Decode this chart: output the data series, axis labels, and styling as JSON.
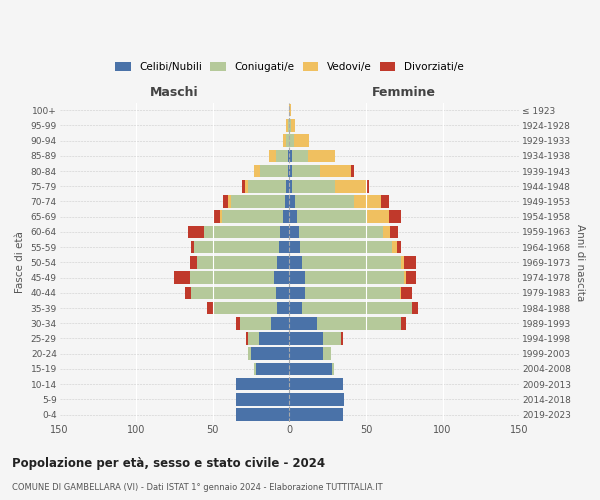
{
  "age_groups": [
    "0-4",
    "5-9",
    "10-14",
    "15-19",
    "20-24",
    "25-29",
    "30-34",
    "35-39",
    "40-44",
    "45-49",
    "50-54",
    "55-59",
    "60-64",
    "65-69",
    "70-74",
    "75-79",
    "80-84",
    "85-89",
    "90-94",
    "95-99",
    "100+"
  ],
  "birth_years": [
    "2019-2023",
    "2014-2018",
    "2009-2013",
    "2004-2008",
    "1999-2003",
    "1994-1998",
    "1989-1993",
    "1984-1988",
    "1979-1983",
    "1974-1978",
    "1969-1973",
    "1964-1968",
    "1959-1963",
    "1954-1958",
    "1949-1953",
    "1944-1948",
    "1939-1943",
    "1934-1938",
    "1929-1933",
    "1924-1928",
    "≤ 1923"
  ],
  "colors": {
    "celibi": "#4a72a8",
    "coniugati": "#b5c99a",
    "vedovi": "#f0c060",
    "divorziati": "#c0392b"
  },
  "male_celibi": [
    35,
    35,
    35,
    22,
    25,
    20,
    12,
    8,
    9,
    10,
    8,
    7,
    6,
    4,
    3,
    2,
    1,
    1,
    0,
    0,
    0
  ],
  "male_coniugati": [
    0,
    0,
    0,
    1,
    2,
    7,
    20,
    42,
    55,
    55,
    52,
    55,
    50,
    40,
    35,
    25,
    18,
    8,
    2,
    1,
    0
  ],
  "male_vedovi": [
    0,
    0,
    0,
    0,
    0,
    0,
    0,
    0,
    0,
    0,
    0,
    0,
    0,
    1,
    2,
    2,
    4,
    4,
    2,
    1,
    0
  ],
  "male_divorziati": [
    0,
    0,
    0,
    0,
    0,
    1,
    3,
    4,
    4,
    10,
    5,
    2,
    10,
    5,
    3,
    2,
    0,
    0,
    0,
    0,
    0
  ],
  "female_celibi": [
    35,
    36,
    35,
    28,
    22,
    22,
    18,
    8,
    10,
    10,
    8,
    7,
    6,
    5,
    4,
    2,
    2,
    2,
    0,
    0,
    0
  ],
  "female_coniugati": [
    0,
    0,
    0,
    1,
    5,
    12,
    55,
    72,
    62,
    65,
    65,
    60,
    55,
    45,
    38,
    28,
    18,
    10,
    3,
    1,
    0
  ],
  "female_vedovi": [
    0,
    0,
    0,
    0,
    0,
    0,
    0,
    0,
    1,
    1,
    2,
    3,
    5,
    15,
    18,
    20,
    20,
    18,
    10,
    3,
    1
  ],
  "female_divorziati": [
    0,
    0,
    0,
    0,
    0,
    1,
    3,
    4,
    7,
    7,
    8,
    3,
    5,
    8,
    5,
    2,
    2,
    0,
    0,
    0,
    0
  ],
  "xlim": 150,
  "title": "Popolazione per età, sesso e stato civile - 2024",
  "subtitle": "COMUNE DI GAMBELLARA (VI) - Dati ISTAT 1° gennaio 2024 - Elaborazione TUTTITALIA.IT",
  "ylabel_left": "Fasce di età",
  "ylabel_right": "Anni di nascita",
  "xlabel_left": "Maschi",
  "xlabel_right": "Femmine",
  "legend_labels": [
    "Celibi/Nubili",
    "Coniugati/e",
    "Vedovi/e",
    "Divorziati/e"
  ],
  "bg_color": "#f5f5f5",
  "bar_height": 0.82
}
